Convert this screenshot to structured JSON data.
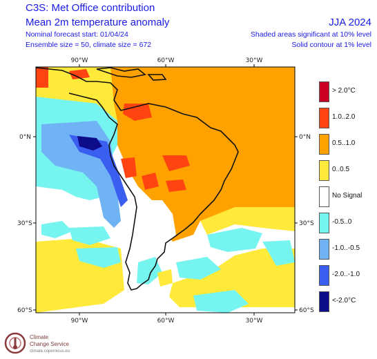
{
  "header": {
    "title_line1": "C3S: Met Office contribution",
    "title_line2": "Mean 2m temperature anomaly",
    "forecast_start": "Nominal forecast start: 01/04/24",
    "ensemble": "Ensemble size = 50, climate size = 672",
    "season": "JJA 2024",
    "note_shaded": "Shaded areas significant at 10% level",
    "note_contour": "Solid contour at 1% level"
  },
  "map": {
    "lon_ticks": [
      "90°W",
      "60°W",
      "30°W"
    ],
    "lat_ticks": [
      "0°N",
      "30°S",
      "60°S"
    ]
  },
  "legend": [
    {
      "label": "> 2.0°C",
      "color": "#cc0022"
    },
    {
      "label": "1.0..2.0",
      "color": "#ff4411"
    },
    {
      "label": "0.5..1.0",
      "color": "#ffa200"
    },
    {
      "label": "0..0.5",
      "color": "#ffe93a"
    },
    {
      "label": "No Signal",
      "color": "#ffffff"
    },
    {
      "label": "-0.5..0",
      "color": "#76f5f0"
    },
    {
      "label": "-1.0..-0.5",
      "color": "#6fb3f5"
    },
    {
      "label": "-2.0..-1.0",
      "color": "#3a5ef0"
    },
    {
      "label": "<-2.0°C",
      "color": "#0d0d8a"
    }
  ],
  "logo": {
    "name_line1": "Climate",
    "name_line2": "Change Service",
    "url": "climate.copernicus.eu"
  }
}
